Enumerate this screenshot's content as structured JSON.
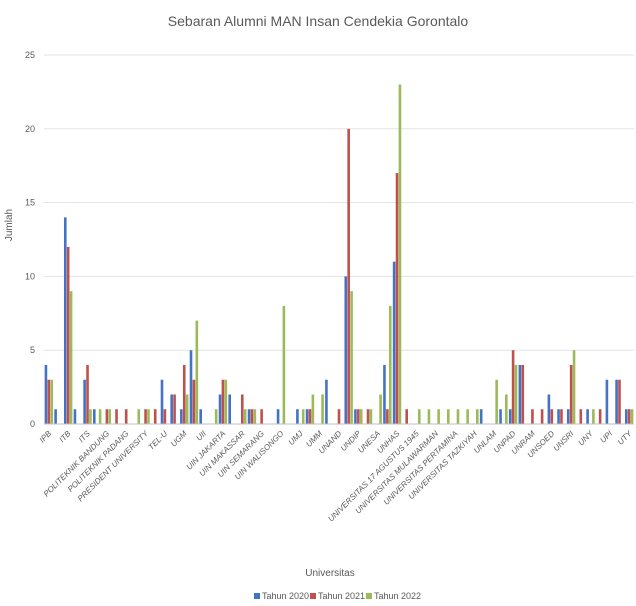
{
  "chart_data": {
    "type": "bar",
    "title": "Sebaran Alumni MAN Insan Cendekia Gorontalo",
    "xlabel": "Universitas",
    "ylabel": "Jumlah",
    "ylim": [
      0,
      25
    ],
    "yticks": [
      0,
      5,
      10,
      15,
      20,
      25
    ],
    "grid": true,
    "legend_position": "bottom",
    "colors": [
      "#4472c4",
      "#c0504d",
      "#9bbb59"
    ],
    "categories": [
      "IPB",
      "",
      "ITB",
      "",
      "ITS",
      "",
      "POLITEKNIK BANDUNG",
      "",
      "POLITEKNIK PADANG",
      "",
      "PRESIDENT UNIVERSITY",
      "",
      "TEL-U",
      "",
      "UGM",
      "",
      "UII",
      "",
      "UIN JAKARTA",
      "",
      "UIN MAKASSAR",
      "",
      "UIN SEMARANG",
      "",
      "UIN WALISONGO",
      "",
      "UMJ",
      "",
      "UMM",
      "",
      "UNAND",
      "",
      "UNDIP",
      "",
      "UNESA",
      "",
      "UNHAS",
      "",
      "UNIVERSITAS 17 AGUSTUS 1945",
      "",
      "UNIVERSITAS MULAWARMAN",
      "",
      "UNIVERSITAS PERTAMINA",
      "",
      "UNIVERSITAS TAZKIYAH",
      "",
      "UNLAM",
      "",
      "UNPAD",
      "",
      "UNRAM",
      "",
      "UNSOED",
      "",
      "UNSRI",
      "",
      "UNY",
      "",
      "UPI",
      "",
      "UTY"
    ],
    "series": [
      {
        "name": "Tahun 2020",
        "values": [
          4,
          1,
          14,
          1,
          3,
          1,
          0,
          0,
          0,
          0,
          0,
          0,
          3,
          2,
          1,
          5,
          1,
          0,
          2,
          2,
          0,
          1,
          0,
          0,
          1,
          0,
          1,
          1,
          0,
          3,
          0,
          10,
          1,
          0,
          0,
          4,
          11,
          0,
          0,
          0,
          0,
          0,
          0,
          0,
          0,
          1,
          0,
          1,
          1,
          4,
          0,
          0,
          2,
          1,
          1,
          0,
          1,
          0,
          3,
          3,
          1
        ]
      },
      {
        "name": "Tahun 2021",
        "values": [
          3,
          0,
          12,
          0,
          4,
          0,
          1,
          1,
          1,
          0,
          1,
          1,
          1,
          2,
          4,
          3,
          0,
          0,
          3,
          0,
          2,
          1,
          1,
          0,
          0,
          0,
          0,
          1,
          0,
          0,
          1,
          20,
          1,
          1,
          0,
          1,
          17,
          1,
          0,
          0,
          0,
          0,
          0,
          0,
          0,
          0,
          0,
          0,
          5,
          4,
          1,
          1,
          1,
          1,
          4,
          1,
          0,
          1,
          0,
          3,
          1
        ]
      },
      {
        "name": "Tahun 2022",
        "values": [
          3,
          0,
          9,
          0,
          1,
          1,
          1,
          0,
          0,
          1,
          1,
          0,
          0,
          0,
          2,
          7,
          0,
          1,
          3,
          0,
          1,
          1,
          0,
          0,
          8,
          0,
          1,
          2,
          2,
          0,
          0,
          9,
          1,
          1,
          2,
          8,
          23,
          0,
          1,
          1,
          1,
          1,
          1,
          1,
          1,
          0,
          3,
          2,
          4,
          0,
          0,
          0,
          0,
          0,
          5,
          0,
          1,
          0,
          0,
          0,
          1
        ]
      }
    ]
  }
}
